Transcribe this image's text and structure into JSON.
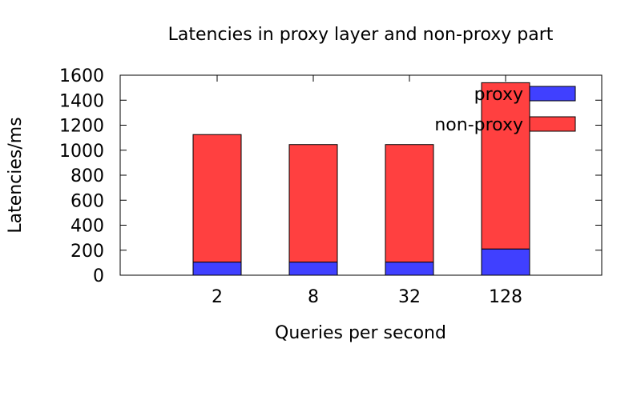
{
  "colors": {
    "proxy": "#4040ff",
    "non_proxy": "#ff4040",
    "axis": "#000000"
  },
  "chart_data": {
    "type": "bar",
    "stacked": true,
    "title": "Latencies in proxy layer and non-proxy part",
    "xlabel": "Queries per second",
    "ylabel": "Latencies/ms",
    "categories": [
      "2",
      "8",
      "32",
      "128"
    ],
    "ylim": [
      0,
      1600
    ],
    "yticks": [
      "0",
      "200",
      "400",
      "600",
      "800",
      "1000",
      "1200",
      "1400",
      "1600"
    ],
    "grid": false,
    "legend_position": "top-right",
    "series": [
      {
        "name": "proxy",
        "color": "#4040ff",
        "values": [
          105,
          105,
          105,
          210
        ]
      },
      {
        "name": "non-proxy",
        "color": "#ff4040",
        "values": [
          1020,
          940,
          940,
          1330
        ]
      }
    ]
  }
}
